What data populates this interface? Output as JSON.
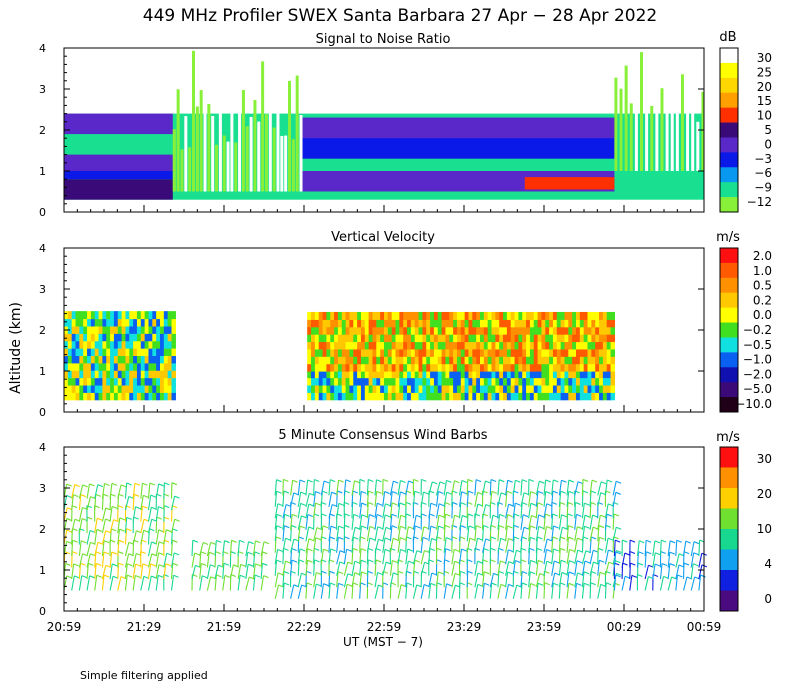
{
  "title": "449 MHz Profiler SWEX Santa Barbara 27 Apr − 28 Apr 2022",
  "ylabel": "Altitude (km)",
  "xlabel": "UT  (MST − 7)",
  "footnote": "Simple filtering applied",
  "x_ticks": [
    "20:59",
    "21:29",
    "21:59",
    "22:29",
    "22:59",
    "23:29",
    "23:59",
    "00:29",
    "00:59"
  ],
  "y_ticks": [
    "0",
    "1",
    "2",
    "3",
    "4"
  ],
  "chart_data": [
    {
      "type": "heatmap",
      "title": "Signal to Noise Ratio",
      "units": "dB",
      "ylim": [
        0,
        4
      ],
      "xlim": [
        "20:59",
        "00:59"
      ],
      "colorbar_labels": [
        "30",
        "25",
        "20",
        "15",
        "10",
        "5",
        "0",
        "−3",
        "−6",
        "−9",
        "−12"
      ],
      "colorbar_colors": [
        "#ffffff",
        "#ffff00",
        "#ffd700",
        "#ff9f00",
        "#ff3000",
        "#3a0a78",
        "#5a28c8",
        "#0a18e8",
        "#0898f0",
        "#18e090",
        "#88f038"
      ],
      "regions": [
        {
          "t0": 0,
          "t1": 0.17,
          "z0": 0.3,
          "z1": 0.8,
          "level": "5"
        },
        {
          "t0": 0,
          "t1": 0.17,
          "z0": 0.8,
          "z1": 1.0,
          "level": "−3"
        },
        {
          "t0": 0,
          "t1": 0.17,
          "z0": 1.0,
          "z1": 1.4,
          "level": "0"
        },
        {
          "t0": 0,
          "t1": 0.17,
          "z0": 1.9,
          "z1": 2.4,
          "level": "0"
        },
        {
          "t0": 0.37,
          "t1": 0.86,
          "z0": 0.5,
          "z1": 1.0,
          "level": "0"
        },
        {
          "t0": 0.72,
          "t1": 0.86,
          "z0": 0.55,
          "z1": 0.85,
          "level": "10"
        },
        {
          "t0": 0.37,
          "t1": 0.86,
          "z0": 1.3,
          "z1": 2.3,
          "level": "−3"
        },
        {
          "t0": 0.37,
          "t1": 0.86,
          "z0": 1.8,
          "z1": 2.3,
          "level": "0"
        }
      ]
    },
    {
      "type": "heatmap",
      "title": "Vertical Velocity",
      "units": "m/s",
      "ylim": [
        0,
        4
      ],
      "xlim": [
        "20:59",
        "00:59"
      ],
      "colorbar_labels": [
        "2.0",
        "1.0",
        "0.5",
        "0.2",
        "0.0",
        "−0.2",
        "−0.5",
        "−1.0",
        "−2.0",
        "−5.0",
        "−10.0"
      ],
      "colorbar_colors": [
        "#ff1010",
        "#ff5a00",
        "#ff9000",
        "#ffc800",
        "#ffff00",
        "#40e020",
        "#10e0e0",
        "#0a60f0",
        "#1010b0",
        "#3c0a78",
        "#200018"
      ],
      "regions": [
        {
          "t0": 0,
          "t1": 0.17,
          "z0": 0.3,
          "z1": 2.3,
          "level": "−0.2"
        },
        {
          "t0": 0.38,
          "t1": 0.86,
          "z0": 0.3,
          "z1": 1.0,
          "level": "−0.5"
        },
        {
          "t0": 0.38,
          "t1": 0.86,
          "z0": 1.0,
          "z1": 2.3,
          "level": "0.2"
        }
      ]
    },
    {
      "type": "wind_barbs",
      "title": "5 Minute Consensus Wind Barbs",
      "units": "m/s",
      "ylim": [
        0,
        4
      ],
      "xlim": [
        "20:59",
        "00:59"
      ],
      "colorbar_labels": [
        "30",
        "20",
        "10",
        "4",
        "0"
      ],
      "colorbar_colors": [
        "#ff1010",
        "#ff9000",
        "#ffd000",
        "#70e030",
        "#18d890",
        "#10a0f0",
        "#1020e0",
        "#4a0a80"
      ],
      "profiles": [
        {
          "t0": 0,
          "t1": 0.18,
          "z0": 0.5,
          "z1": 2.8,
          "speed_ms": 12
        },
        {
          "t0": 0.2,
          "t1": 0.32,
          "z0": 0.5,
          "z1": 1.5,
          "speed_ms": 10
        },
        {
          "t0": 0.33,
          "t1": 0.86,
          "z0": 0.3,
          "z1": 2.9,
          "speed_ms": 8
        },
        {
          "t0": 0.86,
          "t1": 1.0,
          "z0": 0.5,
          "z1": 1.5,
          "speed_ms": 4
        }
      ]
    }
  ]
}
